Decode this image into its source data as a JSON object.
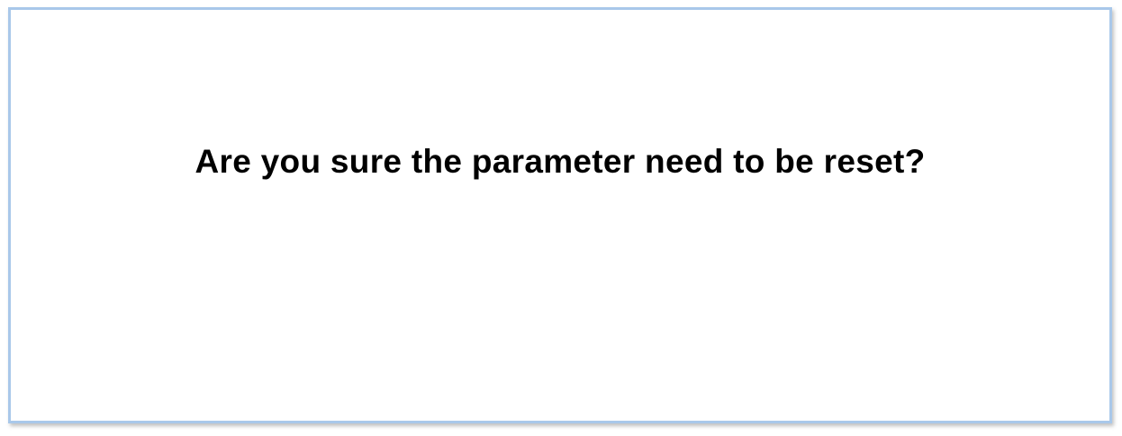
{
  "dialog": {
    "message": "Are you sure the parameter need to be reset?",
    "border_color": "#a9c8ea",
    "background_color": "#ffffff"
  }
}
